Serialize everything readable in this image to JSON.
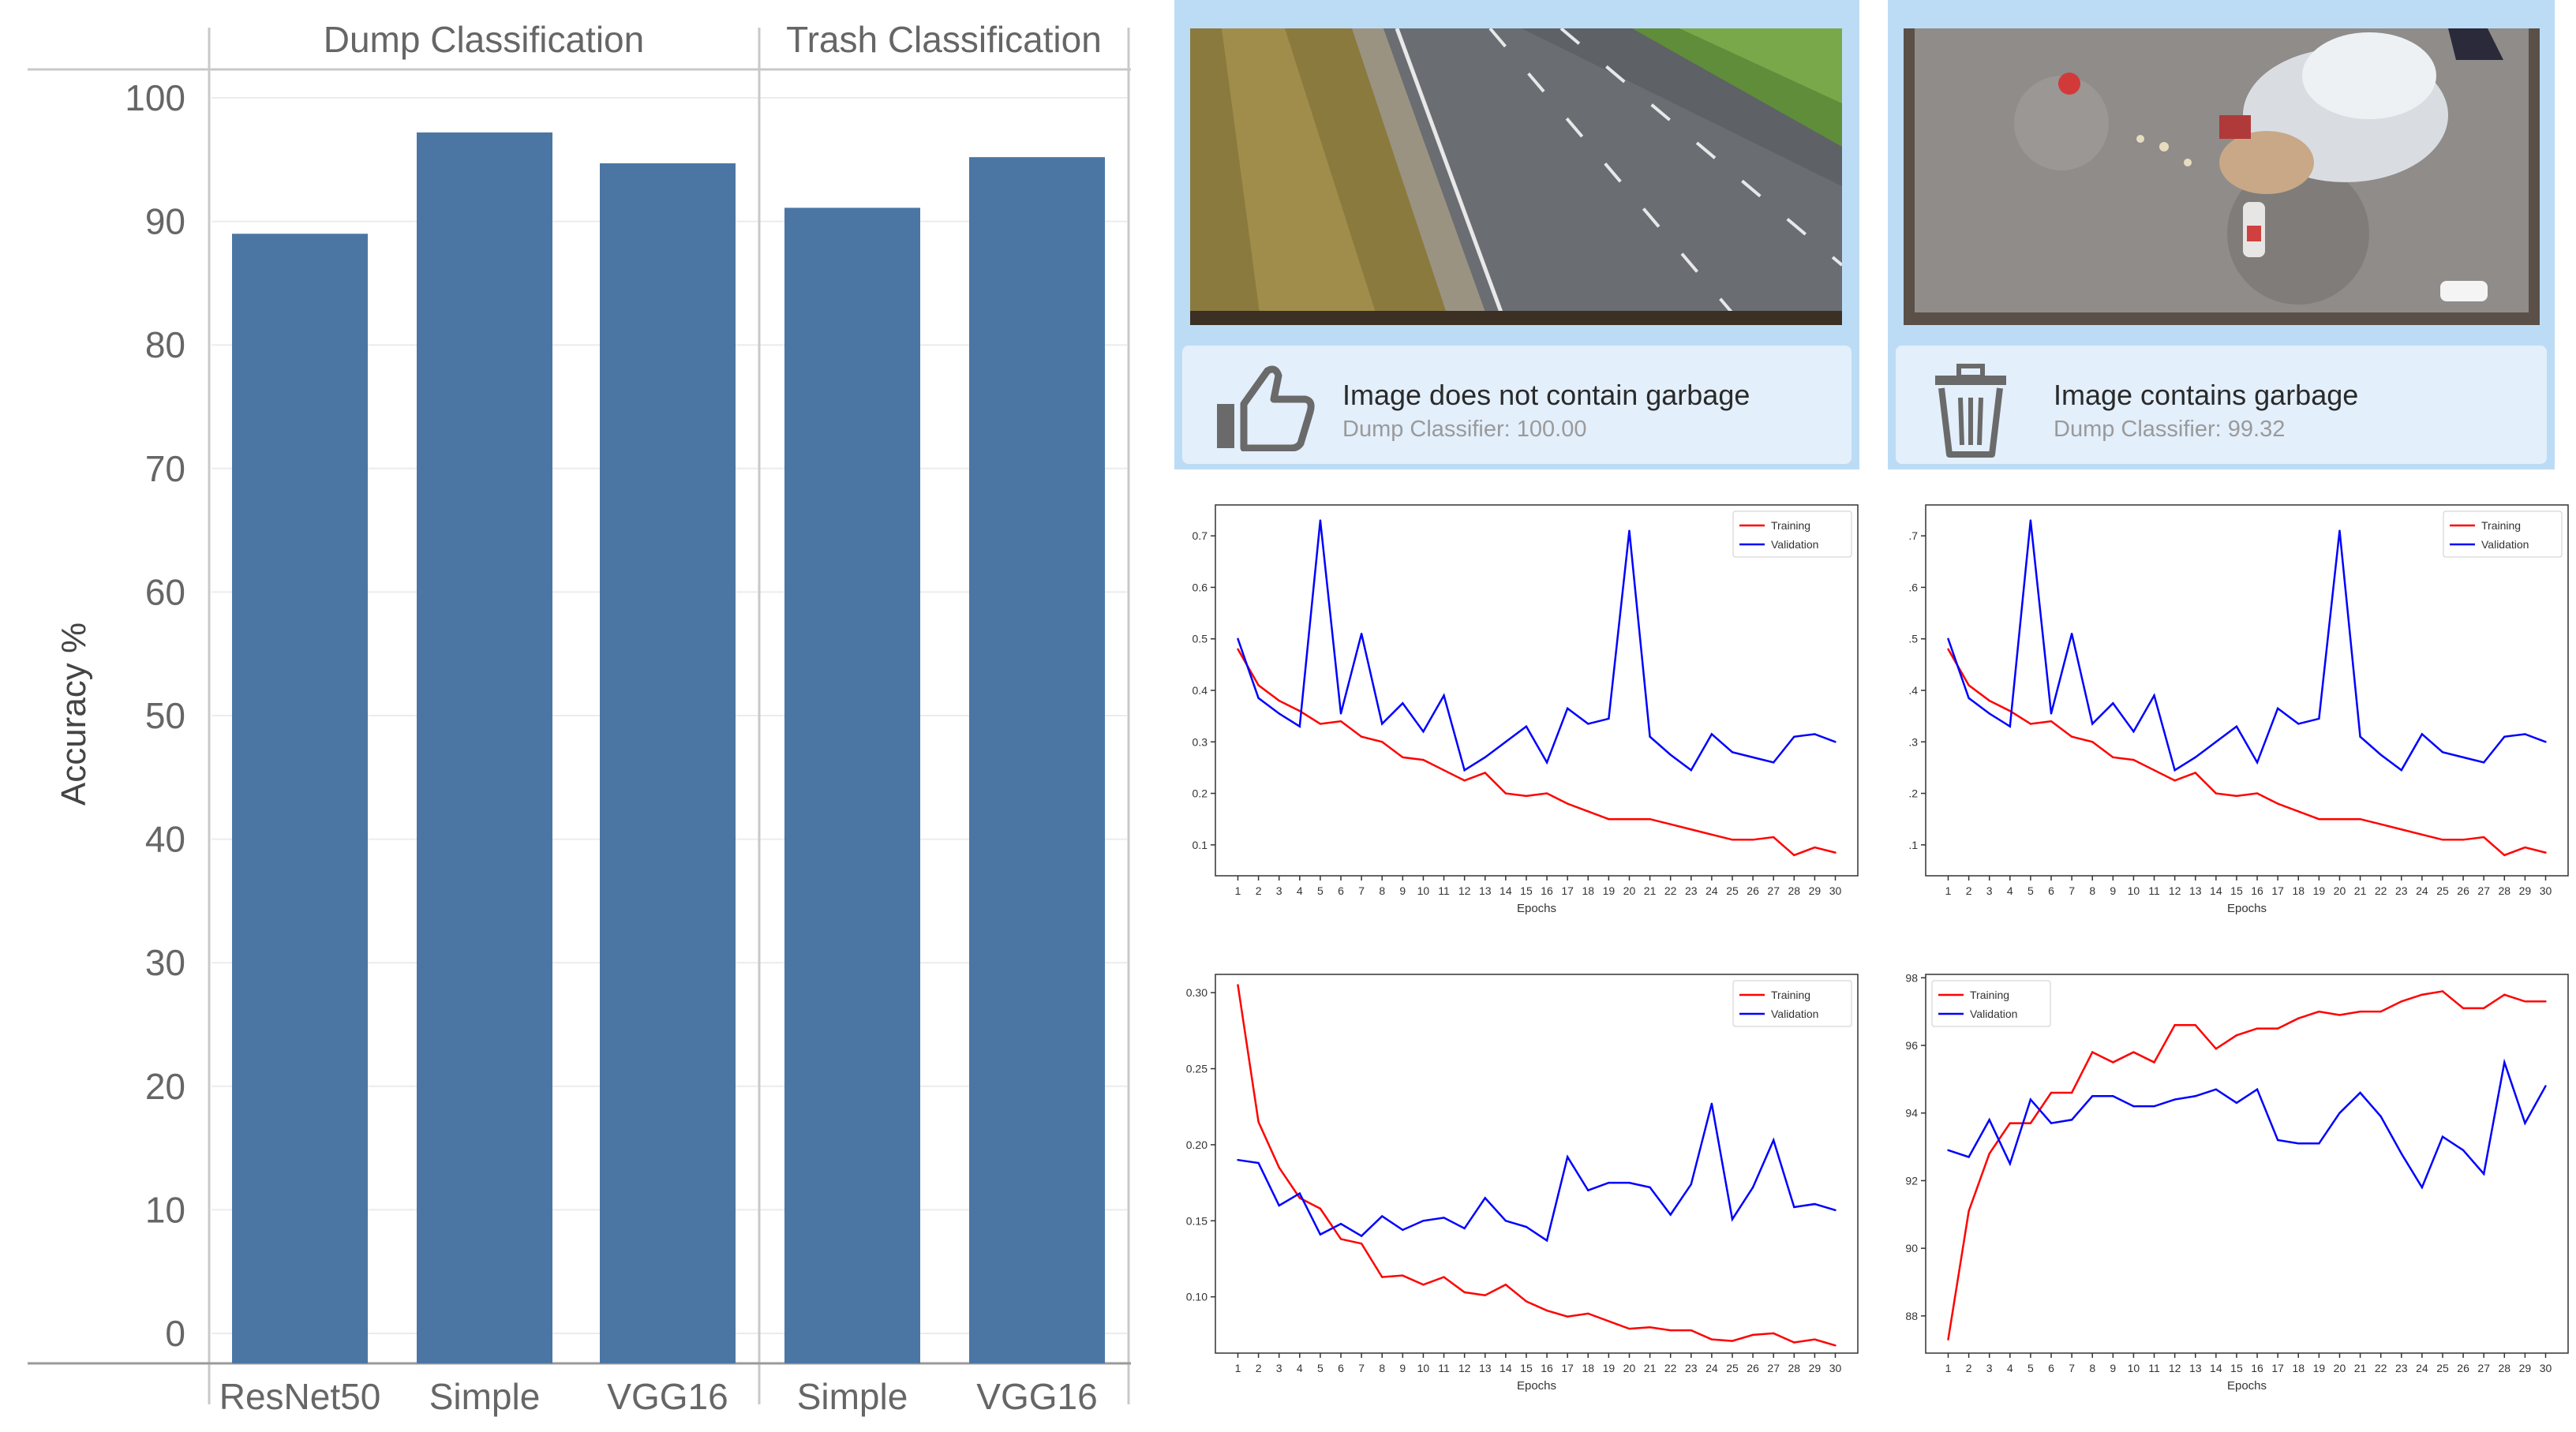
{
  "chart_data": [
    {
      "type": "bar",
      "facets": [
        "Dump Classification",
        "Trash Classification"
      ],
      "categories": [
        {
          "facet": "Dump Classification",
          "label": "ResNet50"
        },
        {
          "facet": "Dump Classification",
          "label": "Simple"
        },
        {
          "facet": "Dump Classification",
          "label": "VGG16"
        },
        {
          "facet": "Trash Classification",
          "label": "Simple"
        },
        {
          "facet": "Trash Classification",
          "label": "VGG16"
        }
      ],
      "values": [
        89,
        97.2,
        94.7,
        91.1,
        95.2
      ],
      "ylabel": "Accuracy %",
      "ylim": [
        0,
        100
      ],
      "yticks": [
        0,
        10,
        20,
        30,
        40,
        50,
        60,
        70,
        80,
        90,
        100
      ],
      "color": "#4b76a4",
      "grid": true
    },
    {
      "type": "line",
      "xlabel": "Epochs",
      "x": [
        1,
        2,
        3,
        4,
        5,
        6,
        7,
        8,
        9,
        10,
        11,
        12,
        13,
        14,
        15,
        16,
        17,
        18,
        19,
        20,
        21,
        22,
        23,
        24,
        25,
        26,
        27,
        28,
        29,
        30
      ],
      "ylim": [
        0.04,
        0.76
      ],
      "yticks": [
        "0.1",
        "0.2",
        "0.3",
        "0.4",
        "0.5",
        "0.6",
        "0.7"
      ],
      "legend_position": "top-right",
      "series": [
        {
          "name": "Training",
          "color": "#ff0000",
          "values": [
            0.48,
            0.41,
            0.38,
            0.36,
            0.335,
            0.34,
            0.31,
            0.3,
            0.27,
            0.265,
            0.245,
            0.225,
            0.24,
            0.2,
            0.195,
            0.2,
            0.18,
            0.165,
            0.15,
            0.15,
            0.15,
            0.14,
            0.13,
            0.12,
            0.11,
            0.11,
            0.115,
            0.08,
            0.095,
            0.085
          ]
        },
        {
          "name": "Validation",
          "color": "#0000ff",
          "values": [
            0.5,
            0.385,
            0.355,
            0.33,
            0.73,
            0.355,
            0.51,
            0.335,
            0.375,
            0.32,
            0.39,
            0.245,
            0.27,
            0.3,
            0.33,
            0.26,
            0.365,
            0.335,
            0.345,
            0.71,
            0.31,
            0.275,
            0.245,
            0.315,
            0.28,
            0.27,
            0.26,
            0.31,
            0.315,
            0.3
          ]
        }
      ]
    },
    {
      "type": "line",
      "xlabel": "Epochs",
      "x": [
        1,
        2,
        3,
        4,
        5,
        6,
        7,
        8,
        9,
        10,
        11,
        12,
        13,
        14,
        15,
        16,
        17,
        18,
        19,
        20,
        21,
        22,
        23,
        24,
        25,
        26,
        27,
        28,
        29,
        30
      ],
      "ylim": [
        0.04,
        0.76
      ],
      "yticks": [
        ".1",
        ".2",
        ".3",
        ".4",
        ".5",
        ".6",
        ".7"
      ],
      "legend_position": "top-right",
      "series": [
        {
          "name": "Training",
          "color": "#ff0000",
          "values": [
            0.48,
            0.41,
            0.38,
            0.36,
            0.335,
            0.34,
            0.31,
            0.3,
            0.27,
            0.265,
            0.245,
            0.225,
            0.24,
            0.2,
            0.195,
            0.2,
            0.18,
            0.165,
            0.15,
            0.15,
            0.15,
            0.14,
            0.13,
            0.12,
            0.11,
            0.11,
            0.115,
            0.08,
            0.095,
            0.085
          ]
        },
        {
          "name": "Validation",
          "color": "#0000ff",
          "values": [
            0.5,
            0.385,
            0.355,
            0.33,
            0.73,
            0.355,
            0.51,
            0.335,
            0.375,
            0.32,
            0.39,
            0.245,
            0.27,
            0.3,
            0.33,
            0.26,
            0.365,
            0.335,
            0.345,
            0.71,
            0.31,
            0.275,
            0.245,
            0.315,
            0.28,
            0.27,
            0.26,
            0.31,
            0.315,
            0.3
          ]
        }
      ]
    },
    {
      "type": "line",
      "xlabel": "Epochs",
      "x": [
        1,
        2,
        3,
        4,
        5,
        6,
        7,
        8,
        9,
        10,
        11,
        12,
        13,
        14,
        15,
        16,
        17,
        18,
        19,
        20,
        21,
        22,
        23,
        24,
        25,
        26,
        27,
        28,
        29,
        30
      ],
      "ylim": [
        0.063,
        0.312
      ],
      "yticks": [
        "0.10",
        "0.15",
        "0.20",
        "0.25",
        "0.30"
      ],
      "legend_position": "top-right",
      "series": [
        {
          "name": "Training",
          "color": "#ff0000",
          "values": [
            0.305,
            0.215,
            0.185,
            0.165,
            0.158,
            0.138,
            0.135,
            0.113,
            0.114,
            0.108,
            0.113,
            0.103,
            0.101,
            0.108,
            0.097,
            0.091,
            0.087,
            0.089,
            0.084,
            0.079,
            0.08,
            0.078,
            0.078,
            0.072,
            0.071,
            0.075,
            0.076,
            0.07,
            0.072,
            0.068
          ]
        },
        {
          "name": "Validation",
          "color": "#0000ff",
          "values": [
            0.19,
            0.188,
            0.16,
            0.168,
            0.141,
            0.148,
            0.14,
            0.153,
            0.144,
            0.15,
            0.152,
            0.145,
            0.165,
            0.15,
            0.146,
            0.137,
            0.192,
            0.17,
            0.175,
            0.175,
            0.172,
            0.154,
            0.174,
            0.227,
            0.151,
            0.172,
            0.203,
            0.159,
            0.161,
            0.157
          ]
        }
      ]
    },
    {
      "type": "line",
      "xlabel": "Epochs",
      "x": [
        1,
        2,
        3,
        4,
        5,
        6,
        7,
        8,
        9,
        10,
        11,
        12,
        13,
        14,
        15,
        16,
        17,
        18,
        19,
        20,
        21,
        22,
        23,
        24,
        25,
        26,
        27,
        28,
        29,
        30
      ],
      "ylim": [
        86.9,
        98.1
      ],
      "yticks": [
        "88",
        "90",
        "92",
        "94",
        "96",
        "98"
      ],
      "legend_position": "top-left",
      "series": [
        {
          "name": "Training",
          "color": "#ff0000",
          "values": [
            87.3,
            91.1,
            92.8,
            93.7,
            93.7,
            94.6,
            94.6,
            95.8,
            95.5,
            95.8,
            95.5,
            96.6,
            96.6,
            95.9,
            96.3,
            96.5,
            96.5,
            96.8,
            97.0,
            96.9,
            97.0,
            97.0,
            97.3,
            97.5,
            97.6,
            97.1,
            97.1,
            97.5,
            97.3,
            97.3
          ]
        },
        {
          "name": "Validation",
          "color": "#0000ff",
          "values": [
            92.9,
            92.7,
            93.8,
            92.5,
            94.4,
            93.7,
            93.8,
            94.5,
            94.5,
            94.2,
            94.2,
            94.4,
            94.5,
            94.7,
            94.3,
            94.7,
            93.2,
            93.1,
            93.1,
            94.0,
            94.6,
            93.9,
            92.8,
            91.8,
            93.3,
            92.9,
            92.2,
            95.5,
            93.7,
            94.8
          ]
        }
      ]
    }
  ],
  "results": [
    {
      "title": "Image does not contain garbage",
      "subtitle": "Dump Classifier: 100.00",
      "icon": "thumbs-up-icon"
    },
    {
      "title": "Image contains garbage",
      "subtitle": "Dump Classifier: 99.32",
      "icon": "trash-can-icon"
    }
  ]
}
